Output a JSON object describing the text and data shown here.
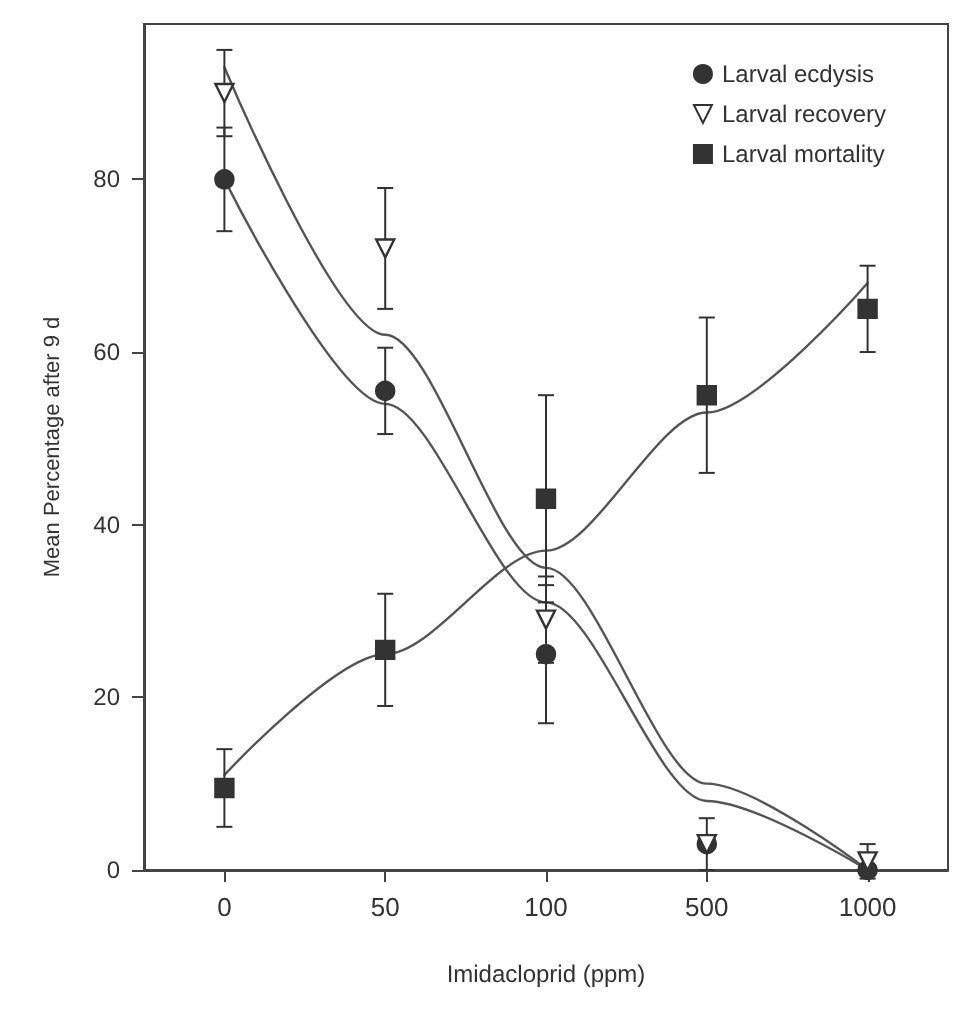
{
  "chart_data": {
    "type": "scatter",
    "xlabel": "Imidacloprid (ppm)",
    "ylabel": "Mean Percentage after 9 d",
    "categories": [
      "0",
      "50",
      "100",
      "500",
      "1000"
    ],
    "ylim": [
      0,
      98
    ],
    "yticks": [
      0,
      20,
      40,
      60,
      80
    ],
    "legend": "top right",
    "grid": false,
    "series": [
      {
        "name": "Larval ecdysis",
        "color": "#333333",
        "marker": "circle",
        "values": [
          80,
          55.5,
          25,
          3,
          0
        ],
        "errors": [
          6,
          5,
          8,
          null,
          null
        ]
      },
      {
        "name": "Larval recovery",
        "color": "#333333",
        "marker": "triangle",
        "values": [
          90,
          72,
          29,
          3,
          1
        ],
        "errors": [
          5,
          7,
          5,
          3,
          2
        ]
      },
      {
        "name": "Larval mortality",
        "color": "#333333",
        "marker": "square",
        "values": [
          9.5,
          25.5,
          43,
          55,
          65
        ],
        "errors": [
          4.5,
          6.5,
          12,
          9,
          5
        ]
      },
      {
        "type": "line",
        "color": "#555555",
        "marker": "none",
        "values": [
          80,
          54,
          31,
          8,
          0
        ]
      },
      {
        "type": "line",
        "color": "#555555",
        "marker": "none",
        "values": [
          93,
          62,
          35,
          10,
          0
        ]
      },
      {
        "type": "line",
        "color": "#555555",
        "marker": "none",
        "values": [
          11,
          25,
          37,
          53,
          68
        ]
      }
    ]
  }
}
